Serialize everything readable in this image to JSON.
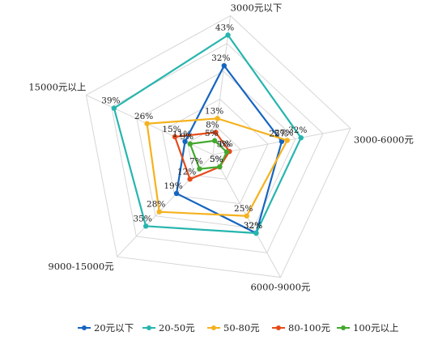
{
  "chart_data": {
    "type": "radar",
    "axes": [
      "3000元以下",
      "3000-6000元",
      "6000-9000元",
      "9000-15000元",
      "15000元以上"
    ],
    "rmax": 50,
    "grid_levels": 5,
    "series": [
      {
        "name": "20元以下",
        "values": [
          32,
          25,
          32,
          19,
          11
        ],
        "color": "#1565C0",
        "labels": [
          "32%",
          "25%",
          "32%",
          "19%",
          "11%"
        ]
      },
      {
        "name": "20-50元",
        "values": [
          43,
          32,
          32,
          35,
          39
        ],
        "color": "#26B5AE",
        "labels": [
          "43%",
          "32%",
          "32%",
          "35%",
          "39%"
        ]
      },
      {
        "name": "50-80元",
        "values": [
          13,
          27,
          25,
          28,
          26
        ],
        "color": "#F5B21E",
        "labels": [
          "13%",
          "27%",
          "25%",
          "28%",
          "26%"
        ]
      },
      {
        "name": "80-100元",
        "values": [
          8,
          6,
          5,
          12,
          15
        ],
        "color": "#E64A19",
        "labels": [
          "8%",
          "6%",
          "5%",
          "12%",
          "15%"
        ]
      },
      {
        "name": "100元以上",
        "values": [
          5,
          5,
          5,
          7,
          9
        ],
        "color": "#43A82E",
        "labels": [
          "5%",
          "5%",
          "5%",
          "7%",
          "9%"
        ]
      }
    ]
  }
}
